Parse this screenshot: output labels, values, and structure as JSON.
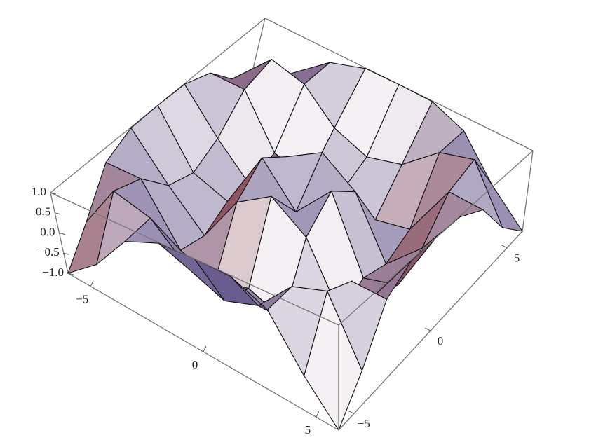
{
  "chart_data": {
    "type": "surface3d",
    "x": [
      -6,
      -4.5,
      -3,
      -1.5,
      0,
      1.5,
      3,
      4.5,
      6
    ],
    "y": [
      -6,
      -4.5,
      -3,
      -1.5,
      0,
      1.5,
      3,
      4.5,
      6
    ],
    "z": [
      [
        -1.0,
        -0.32,
        0.64,
        0.98,
        1.0,
        0.98,
        0.64,
        -0.32,
        -1.0
      ],
      [
        -0.32,
        0.91,
        0.66,
        -0.12,
        -0.42,
        -0.12,
        0.66,
        0.91,
        -0.32
      ],
      [
        0.64,
        0.66,
        -0.69,
        -0.94,
        -0.69,
        -0.94,
        -0.69,
        0.66,
        0.64
      ],
      [
        0.98,
        -0.12,
        -0.94,
        0.37,
        0.93,
        0.37,
        -0.94,
        -0.12,
        0.98
      ],
      [
        1.0,
        -0.42,
        -0.69,
        0.93,
        0,
        0.93,
        -0.69,
        -0.42,
        1.0
      ],
      [
        0.98,
        -0.12,
        -0.94,
        0.37,
        0.93,
        0.37,
        -0.94,
        -0.12,
        0.98
      ],
      [
        0.64,
        0.66,
        -0.69,
        -0.94,
        -0.69,
        -0.94,
        -0.69,
        0.66,
        0.64
      ],
      [
        -0.32,
        0.91,
        0.66,
        -0.12,
        -0.42,
        -0.12,
        0.66,
        0.91,
        -0.32
      ],
      [
        -1.0,
        -0.32,
        0.64,
        0.98,
        1.0,
        0.98,
        0.64,
        -0.32,
        -1.0
      ]
    ],
    "xlim": [
      -6,
      6
    ],
    "ylim": [
      -6,
      6
    ],
    "zlim": [
      -1,
      1
    ],
    "xticks": [
      {
        "value": -5,
        "label": "−5"
      },
      0,
      5
    ],
    "yticks": [
      {
        "value": -5,
        "label": "−5"
      },
      0,
      5
    ],
    "zticks": [
      {
        "value": 1,
        "label": "1.0"
      },
      0.5,
      {
        "value": 0,
        "label": "0.0"
      },
      {
        "value": -0.5,
        "label": "−0.5"
      },
      {
        "value": -1,
        "label": "−1.0"
      }
    ],
    "colors": [
      "#5e4f86",
      "#f4f0f4",
      "#8a3e45"
    ]
  }
}
